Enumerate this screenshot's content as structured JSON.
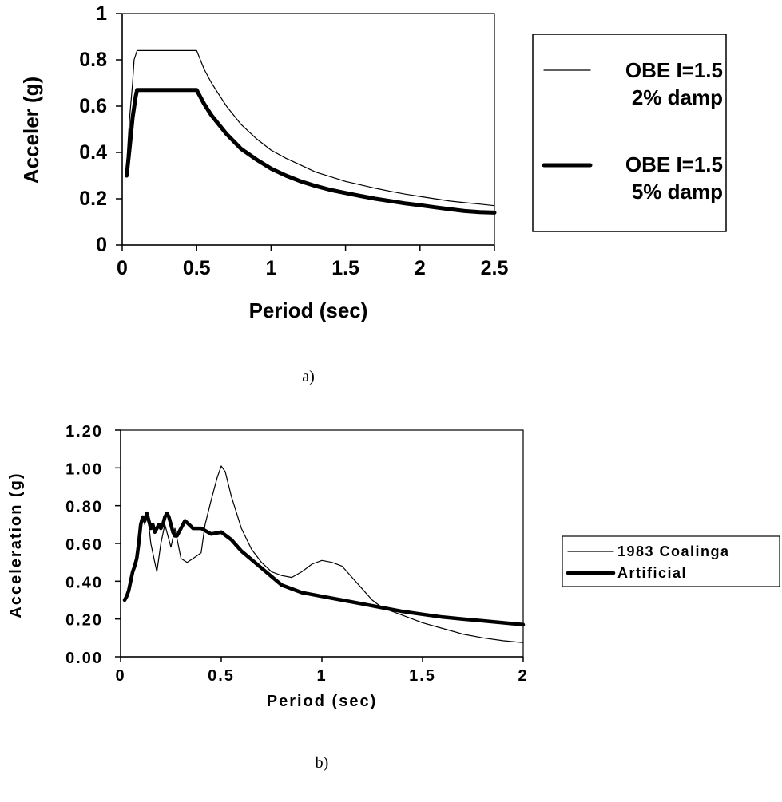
{
  "chart_data": [
    {
      "type": "line",
      "xlabel": "Period (sec)",
      "ylabel": "Acceler (g)",
      "xlim": [
        0,
        2.5
      ],
      "ylim": [
        0,
        1
      ],
      "xticks": [
        "0",
        "0.5",
        "1",
        "1.5",
        "2",
        "2.5"
      ],
      "yticks": [
        "0",
        "0.2",
        "0.4",
        "0.6",
        "0.8",
        "1"
      ],
      "grid": false,
      "legend": "right",
      "caption": "a)",
      "series": [
        {
          "name_lines": [
            "OBE I=1.5",
            "2% damp"
          ],
          "style": "thin",
          "x": [
            0.03,
            0.05,
            0.07,
            0.08,
            0.1,
            0.2,
            0.3,
            0.4,
            0.5,
            0.55,
            0.6,
            0.7,
            0.8,
            0.9,
            1.0,
            1.1,
            1.2,
            1.3,
            1.4,
            1.5,
            1.6,
            1.7,
            1.8,
            1.9,
            2.0,
            2.1,
            2.2,
            2.3,
            2.4,
            2.5
          ],
          "y": [
            0.35,
            0.55,
            0.7,
            0.8,
            0.84,
            0.84,
            0.84,
            0.84,
            0.84,
            0.76,
            0.7,
            0.6,
            0.52,
            0.46,
            0.41,
            0.375,
            0.345,
            0.315,
            0.295,
            0.275,
            0.26,
            0.245,
            0.232,
            0.22,
            0.21,
            0.2,
            0.19,
            0.183,
            0.177,
            0.17
          ]
        },
        {
          "name_lines": [
            "OBE I=1.5",
            "5% damp"
          ],
          "style": "thick",
          "x": [
            0.03,
            0.05,
            0.07,
            0.09,
            0.1,
            0.2,
            0.3,
            0.4,
            0.5,
            0.55,
            0.6,
            0.7,
            0.8,
            0.9,
            1.0,
            1.1,
            1.2,
            1.3,
            1.4,
            1.5,
            1.6,
            1.7,
            1.8,
            1.9,
            2.0,
            2.1,
            2.2,
            2.3,
            2.4,
            2.5
          ],
          "y": [
            0.3,
            0.42,
            0.55,
            0.64,
            0.67,
            0.67,
            0.67,
            0.67,
            0.67,
            0.61,
            0.56,
            0.48,
            0.415,
            0.37,
            0.33,
            0.3,
            0.275,
            0.255,
            0.238,
            0.225,
            0.212,
            0.2,
            0.19,
            0.18,
            0.172,
            0.163,
            0.155,
            0.147,
            0.142,
            0.14
          ]
        }
      ]
    },
    {
      "type": "line",
      "xlabel": "Period (sec)",
      "ylabel": "Acceleration (g)",
      "xlim": [
        0,
        2
      ],
      "ylim": [
        0,
        1.2
      ],
      "xticks": [
        "0",
        "0.5",
        "1",
        "1.5",
        "2"
      ],
      "yticks": [
        "0.00",
        "0.20",
        "0.40",
        "0.60",
        "0.80",
        "1.00",
        "1.20"
      ],
      "grid": false,
      "legend": "right",
      "caption": "b)",
      "series": [
        {
          "name": "1983 Coalinga",
          "style": "thin",
          "x": [
            0.02,
            0.04,
            0.06,
            0.08,
            0.1,
            0.11,
            0.12,
            0.13,
            0.14,
            0.15,
            0.16,
            0.17,
            0.18,
            0.2,
            0.22,
            0.24,
            0.25,
            0.27,
            0.3,
            0.33,
            0.36,
            0.4,
            0.42,
            0.45,
            0.48,
            0.5,
            0.52,
            0.55,
            0.6,
            0.65,
            0.7,
            0.75,
            0.8,
            0.85,
            0.9,
            0.95,
            1.0,
            1.05,
            1.1,
            1.15,
            1.2,
            1.25,
            1.3,
            1.4,
            1.5,
            1.6,
            1.7,
            1.8,
            1.9,
            2.0
          ],
          "y": [
            0.3,
            0.35,
            0.45,
            0.5,
            0.7,
            0.74,
            0.7,
            0.75,
            0.7,
            0.6,
            0.55,
            0.5,
            0.45,
            0.6,
            0.7,
            0.62,
            0.58,
            0.68,
            0.52,
            0.5,
            0.52,
            0.55,
            0.7,
            0.83,
            0.95,
            1.01,
            0.98,
            0.85,
            0.68,
            0.57,
            0.5,
            0.45,
            0.43,
            0.42,
            0.45,
            0.49,
            0.51,
            0.5,
            0.48,
            0.42,
            0.36,
            0.3,
            0.26,
            0.22,
            0.18,
            0.15,
            0.12,
            0.1,
            0.085,
            0.075
          ]
        },
        {
          "name": "Artificial",
          "style": "thick",
          "x": [
            0.02,
            0.03,
            0.04,
            0.05,
            0.06,
            0.07,
            0.08,
            0.09,
            0.1,
            0.11,
            0.12,
            0.13,
            0.14,
            0.15,
            0.16,
            0.17,
            0.18,
            0.19,
            0.2,
            0.21,
            0.22,
            0.23,
            0.24,
            0.25,
            0.26,
            0.27,
            0.28,
            0.3,
            0.32,
            0.34,
            0.36,
            0.38,
            0.4,
            0.45,
            0.5,
            0.55,
            0.6,
            0.7,
            0.8,
            0.9,
            1.0,
            1.1,
            1.2,
            1.3,
            1.4,
            1.5,
            1.6,
            1.7,
            1.8,
            1.9,
            2.0
          ],
          "y": [
            0.3,
            0.32,
            0.35,
            0.4,
            0.45,
            0.48,
            0.52,
            0.6,
            0.7,
            0.74,
            0.72,
            0.76,
            0.72,
            0.68,
            0.7,
            0.66,
            0.68,
            0.7,
            0.68,
            0.7,
            0.74,
            0.76,
            0.74,
            0.7,
            0.66,
            0.64,
            0.64,
            0.68,
            0.72,
            0.7,
            0.68,
            0.68,
            0.68,
            0.65,
            0.66,
            0.62,
            0.56,
            0.47,
            0.38,
            0.34,
            0.32,
            0.3,
            0.28,
            0.26,
            0.24,
            0.225,
            0.21,
            0.2,
            0.19,
            0.18,
            0.17
          ]
        }
      ]
    }
  ]
}
